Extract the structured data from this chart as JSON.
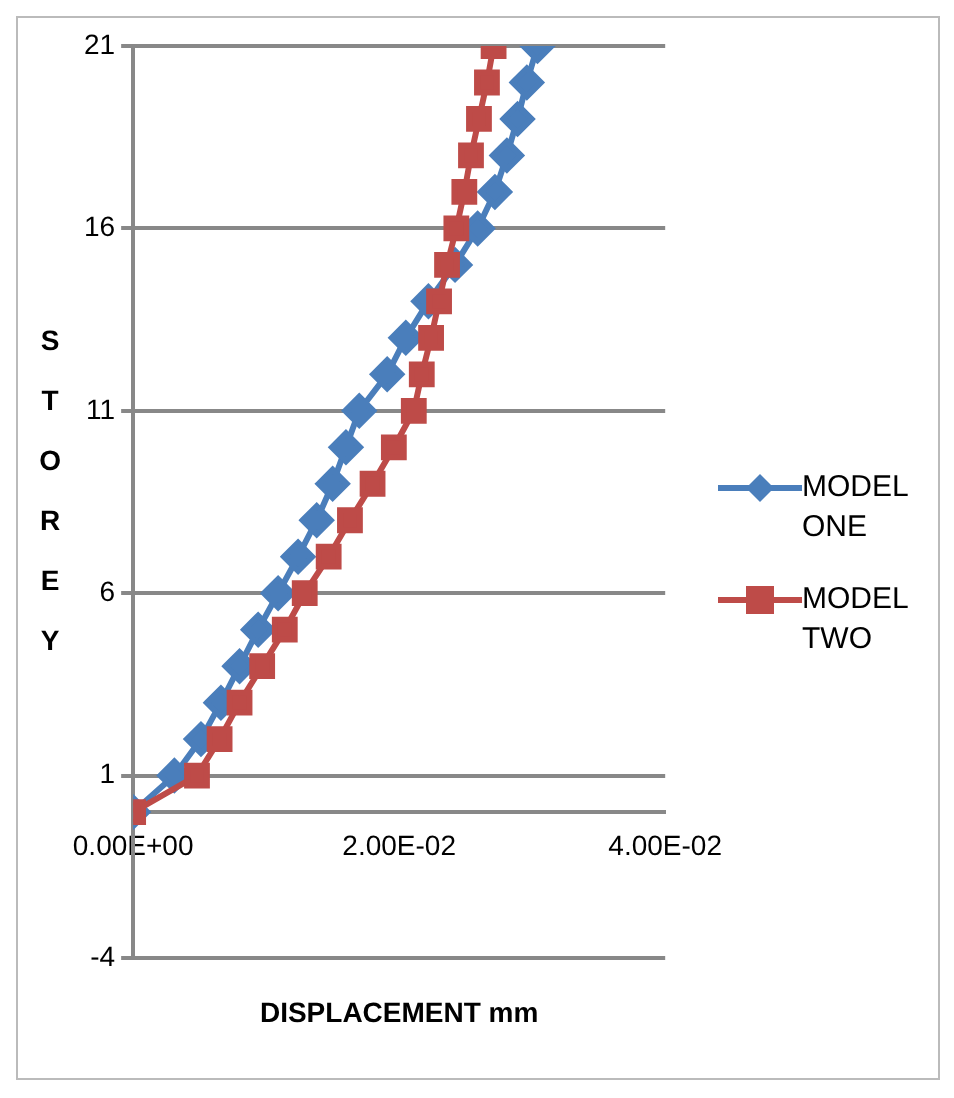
{
  "chart_data": {
    "type": "line",
    "xlabel": "DISPLACEMENT mm",
    "ylabel": "STOREY",
    "xlim": [
      0,
      0.04
    ],
    "xticks": [
      {
        "value": 0,
        "label": "0.00E+00"
      },
      {
        "value": 0.02,
        "label": "2.00E-02"
      },
      {
        "value": 0.04,
        "label": "4.00E-02"
      }
    ],
    "ylim": [
      -4,
      21
    ],
    "yticks": [
      -4,
      1,
      6,
      11,
      16,
      21
    ],
    "grid": "y",
    "legend": "right",
    "line_style": "solid",
    "series": [
      {
        "name": "MODEL ONE",
        "color": "#4a7ebb",
        "marker": "diamond",
        "x": [
          0,
          0.0031,
          0.0051,
          0.0066,
          0.008,
          0.0094,
          0.0109,
          0.0124,
          0.0138,
          0.015,
          0.016,
          0.017,
          0.0191,
          0.0205,
          0.0222,
          0.0242,
          0.0259,
          0.0272,
          0.0281,
          0.0289,
          0.0296,
          0.0304
        ],
        "values": [
          0,
          1,
          2,
          3,
          4,
          5,
          6,
          7,
          8,
          9,
          10,
          11,
          12,
          13,
          14,
          15,
          16,
          17,
          18,
          19,
          20,
          21
        ]
      },
      {
        "name": "MODEL TWO",
        "color": "#be4b48",
        "marker": "square",
        "x": [
          0,
          0.0048,
          0.0065,
          0.008,
          0.0097,
          0.0114,
          0.0129,
          0.0147,
          0.0163,
          0.018,
          0.0196,
          0.0211,
          0.0217,
          0.0224,
          0.023,
          0.0236,
          0.0243,
          0.0249,
          0.0254,
          0.026,
          0.0266,
          0.0271
        ],
        "values": [
          0,
          1,
          2,
          3,
          4,
          5,
          6,
          7,
          8,
          9,
          10,
          11,
          12,
          13,
          14,
          15,
          16,
          17,
          18,
          19,
          20,
          21
        ]
      }
    ]
  }
}
